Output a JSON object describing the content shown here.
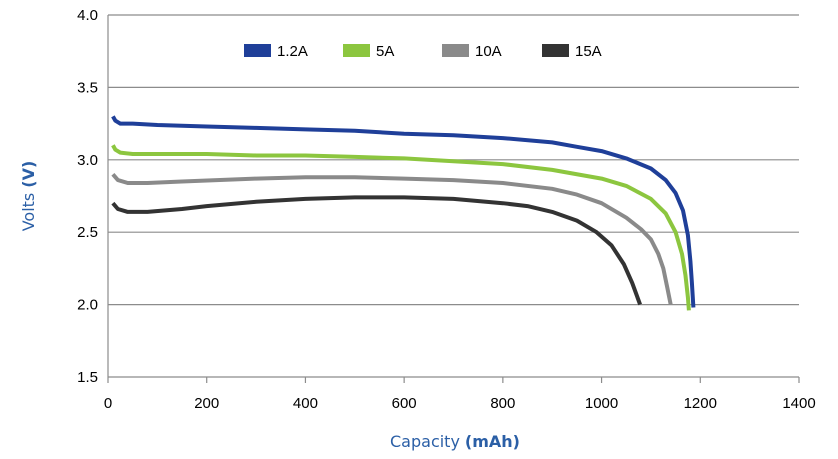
{
  "chart_data": {
    "type": "line",
    "xlabel": "Capacity",
    "xlabel_unit": "(mAh)",
    "ylabel": "Volts",
    "ylabel_unit": "(V)",
    "xlim": [
      0,
      1400
    ],
    "ylim": [
      1.5,
      4.0
    ],
    "xticks": [
      0,
      200,
      400,
      600,
      800,
      1000,
      1200,
      1400
    ],
    "yticks": [
      1.5,
      2.0,
      2.5,
      3.0,
      3.5,
      4.0
    ],
    "ytick_labels": [
      "1.5",
      "2.0",
      "2.5",
      "3.0",
      "3.5",
      "4.0"
    ],
    "grid": "horizontal",
    "legend_position": "top",
    "series": [
      {
        "name": "1.2A",
        "color": "#1f3f99",
        "points": [
          [
            10,
            3.3
          ],
          [
            15,
            3.27
          ],
          [
            25,
            3.25
          ],
          [
            50,
            3.25
          ],
          [
            100,
            3.24
          ],
          [
            200,
            3.23
          ],
          [
            300,
            3.22
          ],
          [
            400,
            3.21
          ],
          [
            500,
            3.2
          ],
          [
            600,
            3.18
          ],
          [
            700,
            3.17
          ],
          [
            800,
            3.15
          ],
          [
            900,
            3.12
          ],
          [
            950,
            3.09
          ],
          [
            1000,
            3.06
          ],
          [
            1050,
            3.01
          ],
          [
            1100,
            2.94
          ],
          [
            1130,
            2.86
          ],
          [
            1150,
            2.77
          ],
          [
            1165,
            2.65
          ],
          [
            1175,
            2.48
          ],
          [
            1180,
            2.3
          ],
          [
            1183,
            2.15
          ],
          [
            1186,
            1.98
          ]
        ]
      },
      {
        "name": "5A",
        "color": "#8cc63f",
        "points": [
          [
            10,
            3.1
          ],
          [
            15,
            3.07
          ],
          [
            25,
            3.05
          ],
          [
            50,
            3.04
          ],
          [
            100,
            3.04
          ],
          [
            200,
            3.04
          ],
          [
            300,
            3.03
          ],
          [
            400,
            3.03
          ],
          [
            500,
            3.02
          ],
          [
            600,
            3.01
          ],
          [
            700,
            2.99
          ],
          [
            800,
            2.97
          ],
          [
            900,
            2.93
          ],
          [
            1000,
            2.87
          ],
          [
            1050,
            2.82
          ],
          [
            1100,
            2.73
          ],
          [
            1130,
            2.63
          ],
          [
            1150,
            2.5
          ],
          [
            1163,
            2.35
          ],
          [
            1170,
            2.2
          ],
          [
            1175,
            2.05
          ],
          [
            1177,
            1.96
          ]
        ]
      },
      {
        "name": "10A",
        "color": "#8a8a8a",
        "points": [
          [
            10,
            2.9
          ],
          [
            20,
            2.86
          ],
          [
            40,
            2.84
          ],
          [
            80,
            2.84
          ],
          [
            150,
            2.85
          ],
          [
            300,
            2.87
          ],
          [
            400,
            2.88
          ],
          [
            500,
            2.88
          ],
          [
            600,
            2.87
          ],
          [
            700,
            2.86
          ],
          [
            800,
            2.84
          ],
          [
            900,
            2.8
          ],
          [
            950,
            2.76
          ],
          [
            1000,
            2.7
          ],
          [
            1050,
            2.6
          ],
          [
            1080,
            2.52
          ],
          [
            1100,
            2.45
          ],
          [
            1115,
            2.35
          ],
          [
            1125,
            2.25
          ],
          [
            1133,
            2.12
          ],
          [
            1140,
            2.0
          ]
        ]
      },
      {
        "name": "15A",
        "color": "#333333",
        "points": [
          [
            10,
            2.7
          ],
          [
            20,
            2.66
          ],
          [
            40,
            2.64
          ],
          [
            80,
            2.64
          ],
          [
            150,
            2.66
          ],
          [
            200,
            2.68
          ],
          [
            300,
            2.71
          ],
          [
            400,
            2.73
          ],
          [
            500,
            2.74
          ],
          [
            600,
            2.74
          ],
          [
            700,
            2.73
          ],
          [
            800,
            2.7
          ],
          [
            850,
            2.68
          ],
          [
            900,
            2.64
          ],
          [
            950,
            2.58
          ],
          [
            990,
            2.5
          ],
          [
            1020,
            2.41
          ],
          [
            1045,
            2.28
          ],
          [
            1062,
            2.15
          ],
          [
            1078,
            2.0
          ]
        ]
      }
    ]
  }
}
